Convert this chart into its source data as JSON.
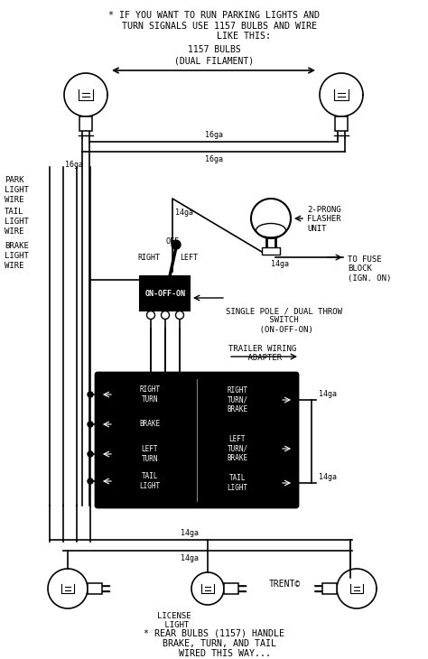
{
  "bg_color": "#ffffff",
  "line_color": "#000000",
  "title_top": "* IF YOU WANT TO RUN PARKING LIGHTS AND\n  TURN SIGNALS USE 1157 BULBS AND WIRE\n           LIKE THIS:",
  "bulb_label": "1157 BULBS\n(DUAL FILAMENT)",
  "park_light_wire": "PARK\nLIGHT\nWIRE",
  "tail_light_wire": "TAIL\nLIGHT\nWIRE",
  "brake_light_wire": "BRAKE\nLIGHT\nWIRE",
  "off_label": "OFF",
  "right_label": "RIGHT",
  "left_label": "LEFT",
  "switch_label": "ON-OFF-ON",
  "flasher_label": "2-PRONG\nFLASHER\nUNIT",
  "fuse_label": "TO FUSE\nBLOCK\n(IGN. ON)",
  "spdt_label": "SINGLE POLE / DUAL THROW\n         SWITCH\n       (ON-OFF-ON)",
  "trailer_label": "TRAILER WIRING\n    ADAPTER",
  "adapter_left": [
    "RIGHT\nTURN",
    "BRAKE",
    "LEFT\nTURN",
    "TAIL\nLIGHT"
  ],
  "adapter_right": [
    "RIGHT\nTURN/\nBRAKE",
    "LEFT\nTURN/\nBRAKE",
    "TAIL\nLIGHT"
  ],
  "license_label": "LICENSE\n LIGHT",
  "trent_label": "TRENT©",
  "footer_label": "* REAR BULBS (1157) HANDLE\n  BRAKE, TURN, AND TAIL\n    WIRED THIS WAY..."
}
